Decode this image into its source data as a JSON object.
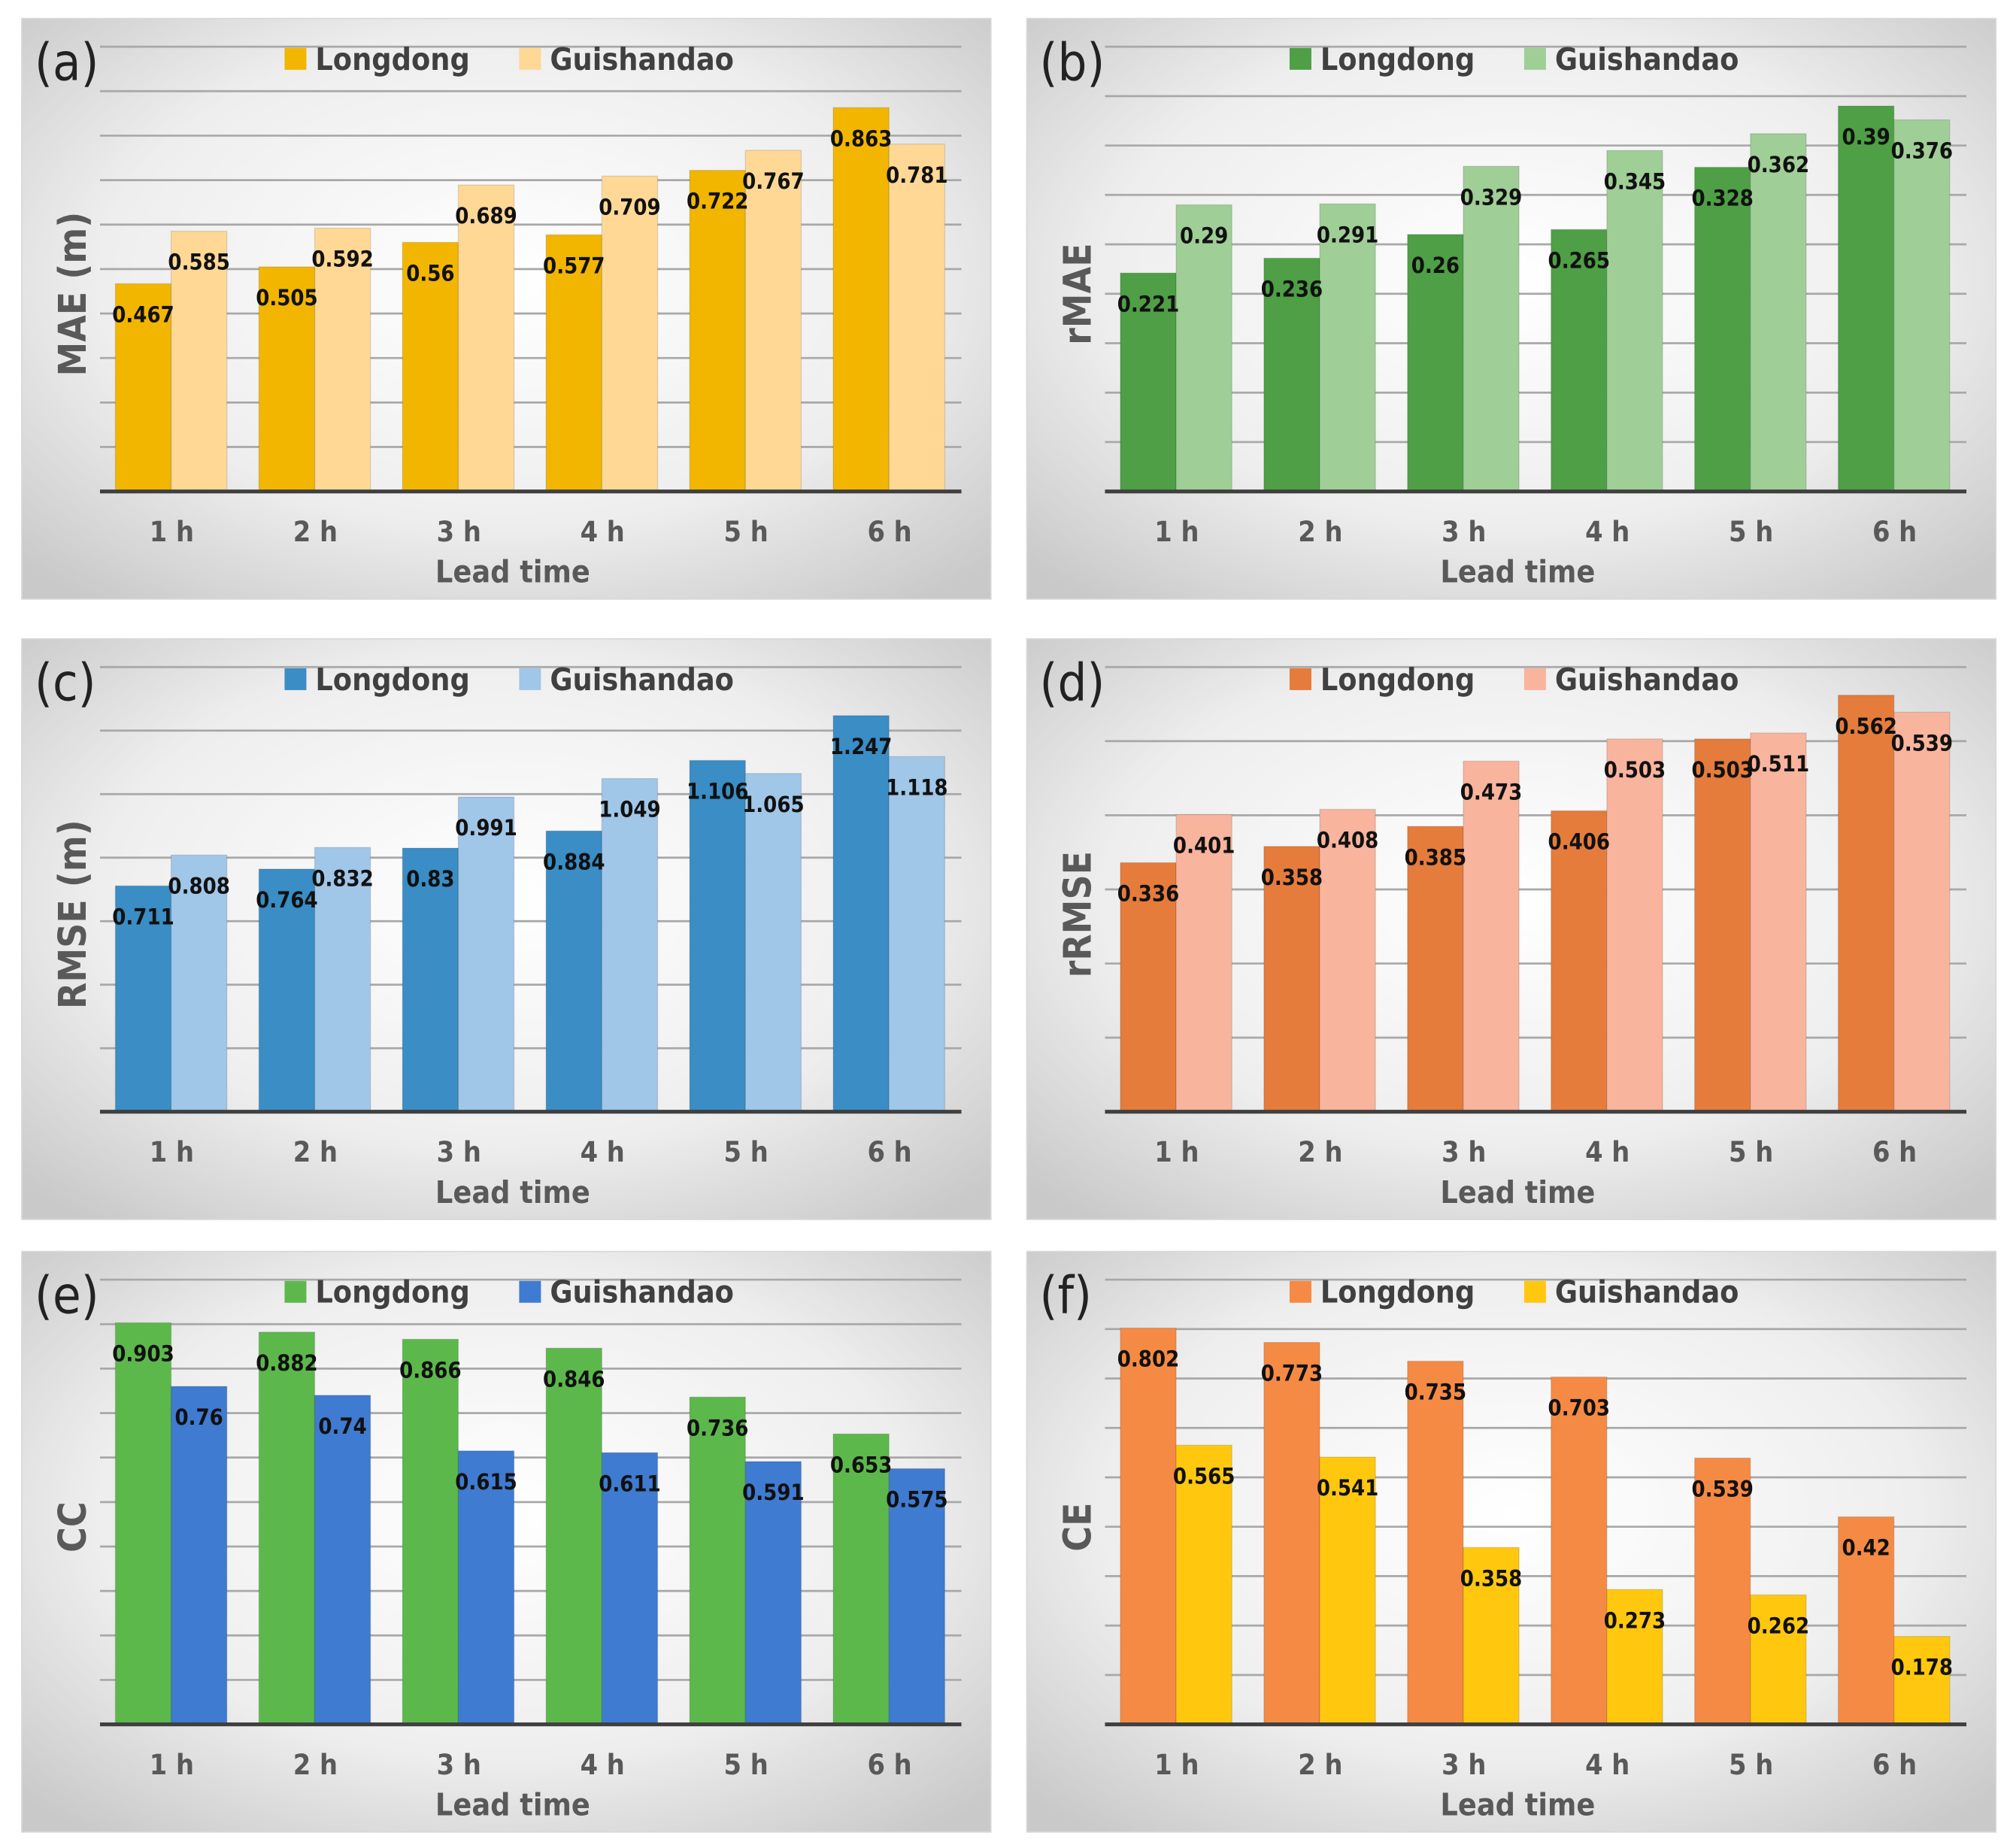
{
  "chart_data": [
    {
      "type": "bar",
      "panel_label": "(a)",
      "ylabel": "MAE (m)",
      "xlabel": "Lead time",
      "categories": [
        "1 h",
        "2 h",
        "3 h",
        "4 h",
        "5 h",
        "6 h"
      ],
      "series": [
        {
          "name": "Longdong",
          "color": "#F2B600",
          "values": [
            0.467,
            0.505,
            0.56,
            0.577,
            0.722,
            0.863
          ]
        },
        {
          "name": "Guishandao",
          "color": "#FFD896",
          "values": [
            0.585,
            0.592,
            0.689,
            0.709,
            0.767,
            0.781
          ]
        }
      ],
      "ylim": [
        0,
        1.0
      ],
      "grid_step": 0.1,
      "grid": true,
      "legend": "top-center"
    },
    {
      "type": "bar",
      "panel_label": "(b)",
      "ylabel": "rMAE",
      "xlabel": "Lead time",
      "categories": [
        "1 h",
        "2 h",
        "3 h",
        "4 h",
        "5 h",
        "6 h"
      ],
      "series": [
        {
          "name": "Longdong",
          "color": "#4E9F45",
          "values": [
            0.221,
            0.236,
            0.26,
            0.265,
            0.328,
            0.39
          ]
        },
        {
          "name": "Guishandao",
          "color": "#9FCE97",
          "values": [
            0.29,
            0.291,
            0.329,
            0.345,
            0.362,
            0.376
          ]
        }
      ],
      "ylim": [
        0,
        0.45
      ],
      "grid_step": 0.05,
      "grid": true,
      "legend": "top-center"
    },
    {
      "type": "bar",
      "panel_label": "(c)",
      "ylabel": "RMSE (m)",
      "xlabel": "Lead time",
      "categories": [
        "1 h",
        "2 h",
        "3 h",
        "4 h",
        "5 h",
        "6 h"
      ],
      "series": [
        {
          "name": "Longdong",
          "color": "#3A8DC5",
          "values": [
            0.711,
            0.764,
            0.83,
            0.884,
            1.106,
            1.247
          ]
        },
        {
          "name": "Guishandao",
          "color": "#A0C6E8",
          "values": [
            0.808,
            0.832,
            0.991,
            1.049,
            1.065,
            1.118
          ]
        }
      ],
      "ylim": [
        0,
        1.4
      ],
      "grid_step": 0.2,
      "grid": true,
      "legend": "top-center"
    },
    {
      "type": "bar",
      "panel_label": "(d)",
      "ylabel": "rRMSE",
      "xlabel": "Lead time",
      "categories": [
        "1 h",
        "2 h",
        "3 h",
        "4 h",
        "5 h",
        "6 h"
      ],
      "series": [
        {
          "name": "Longdong",
          "color": "#E57C3C",
          "values": [
            0.336,
            0.358,
            0.385,
            0.406,
            0.503,
            0.562
          ]
        },
        {
          "name": "Guishandao",
          "color": "#F8B49D",
          "values": [
            0.401,
            0.408,
            0.473,
            0.503,
            0.511,
            0.539
          ]
        }
      ],
      "ylim": [
        0,
        0.6
      ],
      "grid_step": 0.1,
      "grid": true,
      "legend": "top-center"
    },
    {
      "type": "bar",
      "panel_label": "(e)",
      "ylabel": "CC",
      "xlabel": "Lead time",
      "categories": [
        "1 h",
        "2 h",
        "3 h",
        "4 h",
        "5 h",
        "6 h"
      ],
      "series": [
        {
          "name": "Longdong",
          "color": "#5DB84C",
          "values": [
            0.903,
            0.882,
            0.866,
            0.846,
            0.736,
            0.653
          ]
        },
        {
          "name": "Guishandao",
          "color": "#3F7BD0",
          "values": [
            0.76,
            0.74,
            0.615,
            0.611,
            0.591,
            0.575
          ]
        }
      ],
      "ylim": [
        0,
        1.0
      ],
      "grid_step": 0.1,
      "grid": true,
      "legend": "top-center"
    },
    {
      "type": "bar",
      "panel_label": "(f)",
      "ylabel": "CE",
      "xlabel": "Lead time",
      "categories": [
        "1 h",
        "2 h",
        "3 h",
        "4 h",
        "5 h",
        "6 h"
      ],
      "series": [
        {
          "name": "Longdong",
          "color": "#F58A45",
          "values": [
            0.802,
            0.773,
            0.735,
            0.703,
            0.539,
            0.42
          ]
        },
        {
          "name": "Guishandao",
          "color": "#FFC80E",
          "values": [
            0.565,
            0.541,
            0.358,
            0.273,
            0.262,
            0.178
          ]
        }
      ],
      "ylim": [
        0,
        0.9
      ],
      "grid_step": 0.1,
      "grid": true,
      "legend": "top-center"
    }
  ]
}
